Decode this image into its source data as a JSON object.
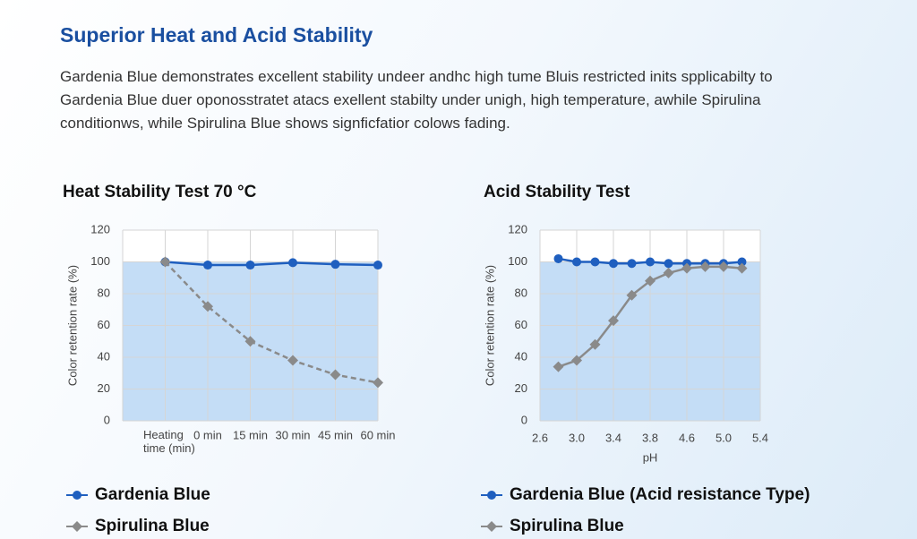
{
  "header": {
    "title": "Superior Heat and Acid Stability",
    "paragraph": [
      "Gardenia Blue demonstrates excellent stability undeer andhc high tume Bluis restricted inits spplicabilty to",
      "Gardenia Blue duer oponosstratet atacs exellent stabilty under unigh, high temperature, awhile Spirulina",
      "conditionws, while Spirulina Blue shows signficfatior colows fading."
    ]
  },
  "chart_data": [
    {
      "type": "line",
      "title": "Heat Stability Test 70 °C",
      "y_label": "Color retention rate (%)",
      "x_label": "Heating time (min)",
      "categories": [
        null,
        "0 min",
        "15 min",
        "30 min",
        "45 min",
        "60 min"
      ],
      "ylim": [
        0,
        120
      ],
      "yticks": [
        0,
        20,
        40,
        60,
        80,
        100,
        120
      ],
      "grid": true,
      "shade": [
        0,
        100
      ],
      "series": [
        {
          "name": "Gardenia Blue",
          "color": "#1f5fbf",
          "marker": "circle",
          "dash": false,
          "values": [
            100,
            98,
            98,
            99.5,
            98.5,
            98
          ]
        },
        {
          "name": "Spirulina Blue",
          "color": "#8a8a8a",
          "marker": "diamond",
          "dash": true,
          "values": [
            100,
            72,
            50,
            38,
            29,
            24
          ]
        }
      ]
    },
    {
      "type": "scatter-line",
      "title": "Acid Stability Test",
      "y_label": "Color retention rate (%)",
      "x_label": "pH",
      "x": [
        2.8,
        3.0,
        3.2,
        3.4,
        3.6,
        3.8,
        4.2,
        4.6,
        4.8,
        5.0,
        5.2
      ],
      "xlim": [
        2.6,
        5.4
      ],
      "xticks": [
        2.6,
        {
          "value": 3,
          "label": "3.0"
        },
        3.4,
        3.8,
        4.6,
        {
          "value": 5,
          "label": "5.0"
        },
        5.4
      ],
      "ylim": [
        0,
        120
      ],
      "yticks": [
        0,
        20,
        40,
        60,
        80,
        100,
        120
      ],
      "grid": true,
      "shade": [
        0,
        100
      ],
      "series": [
        {
          "name": "Gardenia Blue (Acid resistance Type)",
          "color": "#1f5fbf",
          "marker": "circle",
          "dash": false,
          "values": [
            102,
            100,
            100,
            99,
            99,
            100,
            99,
            99,
            99,
            99,
            100
          ]
        },
        {
          "name": "Spirulina Blue",
          "color": "#8a8a8a",
          "marker": "diamond",
          "dash": false,
          "values": [
            34,
            38,
            48,
            63,
            79,
            88,
            93,
            96,
            97,
            97,
            96
          ]
        }
      ]
    }
  ]
}
